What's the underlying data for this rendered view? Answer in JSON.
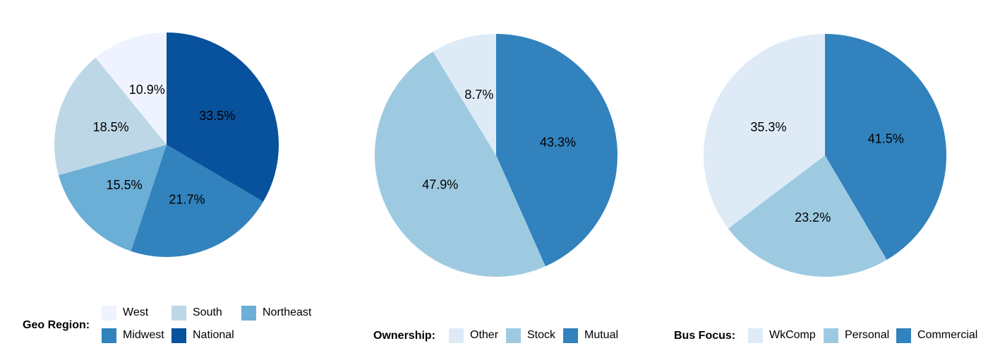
{
  "colors": {
    "lightest": "#eff3ff",
    "light": "#bdd7e7",
    "light_blue": "#c6dbef",
    "mid": "#6baed6",
    "mid_light": "#9ecae1",
    "medium": "#3182bd",
    "dark": "#08519c",
    "pale": "#deebf7"
  },
  "chart_data": [
    {
      "type": "pie",
      "title": "",
      "legend_title": "Geo Region:",
      "legend_placement": "bottom",
      "slices": [
        {
          "name": "National",
          "value": 33.5,
          "label": "33.5%",
          "color": "#08519c"
        },
        {
          "name": "Midwest",
          "value": 21.7,
          "label": "21.7%",
          "color": "#3182bd"
        },
        {
          "name": "Northeast",
          "value": 15.5,
          "label": "15.5%",
          "color": "#6baed6"
        },
        {
          "name": "South",
          "value": 18.5,
          "label": "18.5%",
          "color": "#bdd7e7"
        },
        {
          "name": "West",
          "value": 10.9,
          "label": "10.9%",
          "color": "#eff3ff"
        }
      ],
      "legend_order": [
        "West",
        "South",
        "Northeast",
        "Midwest",
        "National"
      ]
    },
    {
      "type": "pie",
      "title": "",
      "legend_title": "Ownership:",
      "legend_placement": "bottom",
      "slices": [
        {
          "name": "Mutual",
          "value": 43.3,
          "label": "43.3%",
          "color": "#3182bd"
        },
        {
          "name": "Stock",
          "value": 47.9,
          "label": "47.9%",
          "color": "#9ecae1"
        },
        {
          "name": "Other",
          "value": 8.7,
          "label": "8.7%",
          "color": "#deebf7"
        }
      ],
      "legend_order": [
        "Other",
        "Stock",
        "Mutual"
      ]
    },
    {
      "type": "pie",
      "title": "",
      "legend_title": "Bus Focus:",
      "legend_placement": "bottom",
      "slices": [
        {
          "name": "Commercial",
          "value": 41.5,
          "label": "41.5%",
          "color": "#3182bd"
        },
        {
          "name": "Personal",
          "value": 23.2,
          "label": "23.2%",
          "color": "#9ecae1"
        },
        {
          "name": "WkComp",
          "value": 35.3,
          "label": "35.3%",
          "color": "#deebf7"
        }
      ],
      "legend_order": [
        "WkComp",
        "Personal",
        "Commercial"
      ]
    }
  ]
}
